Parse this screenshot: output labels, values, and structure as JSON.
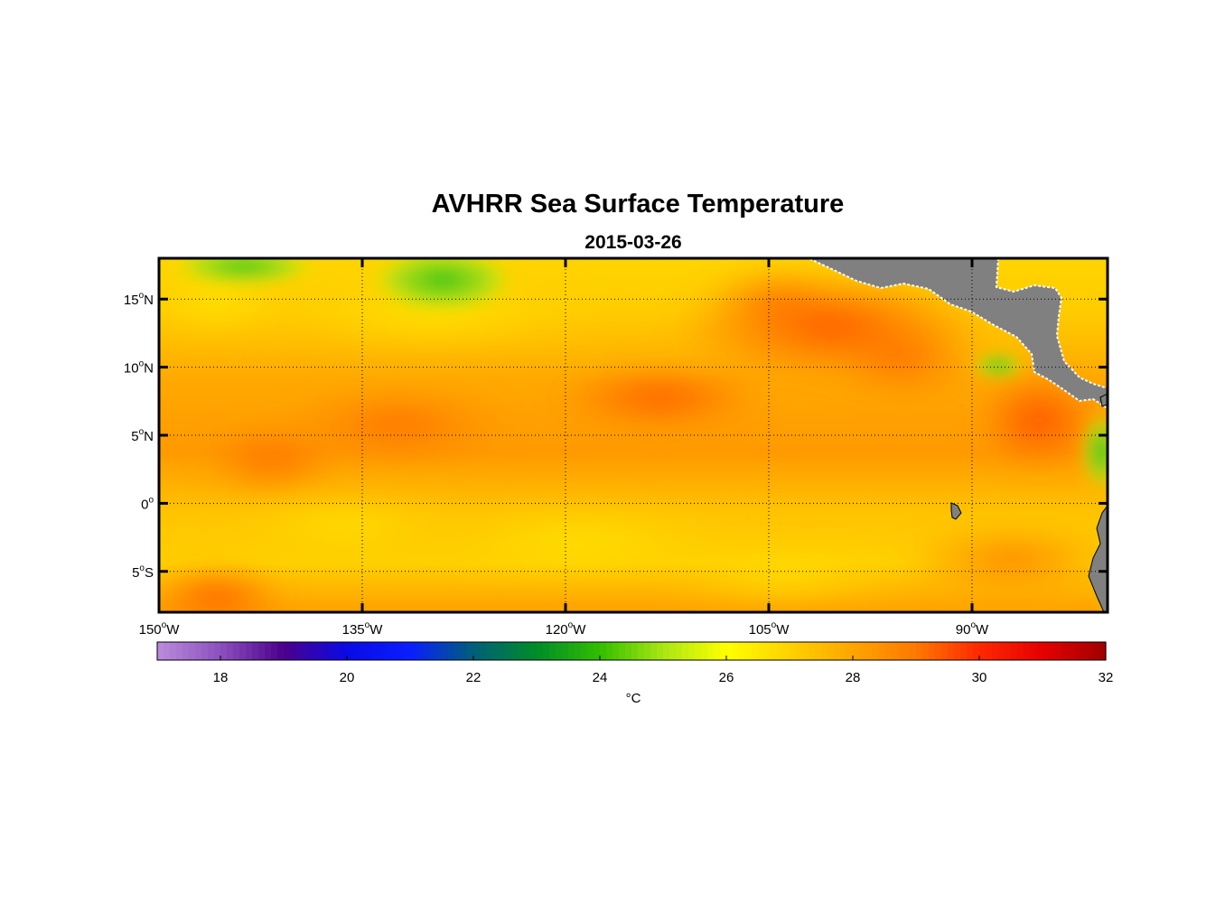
{
  "chart_data": {
    "type": "heatmap",
    "title": "AVHRR Sea Surface Temperature",
    "subtitle": "2015-03-26",
    "variable": "Sea Surface Temperature",
    "units": "°C",
    "lon_range": [
      -150,
      -80
    ],
    "lat_range": [
      -8,
      18
    ],
    "lon_ticks": [
      {
        "value": -150,
        "num": "150",
        "hemi": "W"
      },
      {
        "value": -135,
        "num": "135",
        "hemi": "W"
      },
      {
        "value": -120,
        "num": "120",
        "hemi": "W"
      },
      {
        "value": -105,
        "num": "105",
        "hemi": "W"
      },
      {
        "value": -90,
        "num": "90",
        "hemi": "W"
      }
    ],
    "lat_ticks": [
      {
        "value": 15,
        "num": "15",
        "hemi": "N"
      },
      {
        "value": 10,
        "num": "10",
        "hemi": "N"
      },
      {
        "value": 5,
        "num": "5",
        "hemi": "N"
      },
      {
        "value": 0,
        "num": "0",
        "hemi": ""
      },
      {
        "value": -5,
        "num": "5",
        "hemi": "S"
      }
    ],
    "grid": "dotted",
    "colorbar": {
      "position": "bottom",
      "range": [
        17,
        32
      ],
      "ticks": [
        "18",
        "20",
        "22",
        "24",
        "26",
        "28",
        "30",
        "32"
      ],
      "label": "°C"
    },
    "land_color": "#808080"
  }
}
